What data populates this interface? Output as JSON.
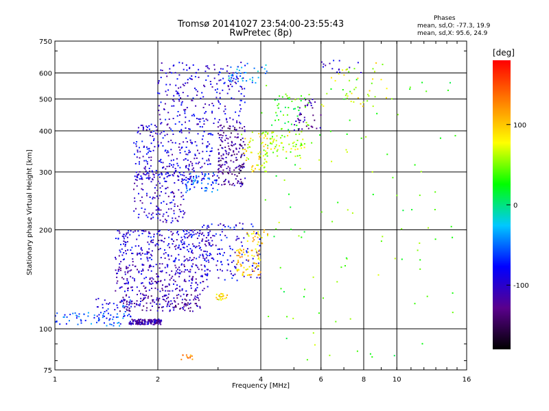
{
  "title_line1": "Tromsø 20141027 23:54:00-23:55:43",
  "title_line2": "RwPretec (8p)",
  "phases": {
    "heading": "Phases",
    "line_o": "mean, sd,O: -77.3, 19.9",
    "line_x": "mean, sd,X:  95.6, 24.9"
  },
  "chart_data": {
    "type": "scatter",
    "xlabel": "Frequency [MHz]",
    "ylabel": "Stationary phase Virtual Height [km]",
    "x_scale": "log",
    "y_scale": "log",
    "xlim": [
      1,
      16
    ],
    "ylim": [
      75,
      750
    ],
    "x_ticks": [
      1,
      2,
      4,
      6,
      8,
      10,
      16
    ],
    "y_ticks": [
      75,
      100,
      200,
      300,
      400,
      500,
      600,
      750
    ],
    "gridlines_x": [
      2,
      4,
      6,
      8,
      10
    ],
    "gridlines_y": [
      100,
      200,
      300,
      400,
      500,
      600
    ],
    "colorbar": {
      "unit": "[deg]",
      "range": [
        -180,
        180
      ],
      "ticks": [
        100,
        0,
        -100
      ],
      "colormap": [
        "#000000",
        "#5a008c",
        "#0000ff",
        "#00c8ff",
        "#00ff00",
        "#ffff00",
        "#ff8000",
        "#ff0000"
      ]
    },
    "point_groups": [
      {
        "x": [
          1.65,
          2.05
        ],
        "y": [
          103,
          107
        ],
        "phase": -115,
        "n": 150
      },
      {
        "x": [
          1.0,
          1.6
        ],
        "y": [
          102,
          112
        ],
        "phase": -60,
        "n": 60
      },
      {
        "x": [
          1.3,
          1.7
        ],
        "y": [
          108,
          125
        ],
        "phase": -75,
        "n": 40
      },
      {
        "x": [
          1.55,
          2.7
        ],
        "y": [
          113,
          128
        ],
        "phase": -115,
        "n": 160
      },
      {
        "x": [
          1.5,
          2.8
        ],
        "y": [
          130,
          158
        ],
        "phase": -105,
        "n": 220
      },
      {
        "x": [
          1.5,
          2.9
        ],
        "y": [
          160,
          200
        ],
        "phase": -95,
        "n": 260
      },
      {
        "x": [
          1.7,
          2.4
        ],
        "y": [
          210,
          300
        ],
        "phase": -100,
        "n": 150
      },
      {
        "x": [
          1.7,
          2.9
        ],
        "y": [
          280,
          420
        ],
        "phase": -95,
        "n": 280
      },
      {
        "x": [
          2.0,
          3.6
        ],
        "y": [
          420,
          650
        ],
        "phase": -95,
        "n": 220
      },
      {
        "x": [
          3.0,
          3.6
        ],
        "y": [
          270,
          420
        ],
        "phase": -125,
        "n": 180
      },
      {
        "x": [
          2.4,
          3.0
        ],
        "y": [
          260,
          300
        ],
        "phase": -60,
        "n": 60
      },
      {
        "x": [
          2.7,
          4.0
        ],
        "y": [
          140,
          210
        ],
        "phase": -90,
        "n": 140
      },
      {
        "x": [
          2.9,
          3.2
        ],
        "y": [
          122,
          128
        ],
        "phase": 90,
        "n": 20
      },
      {
        "x": [
          3.4,
          4.0
        ],
        "y": [
          145,
          175
        ],
        "phase": 100,
        "n": 70
      },
      {
        "x": [
          3.5,
          4.2
        ],
        "y": [
          300,
          400
        ],
        "phase": 80,
        "n": 60
      },
      {
        "x": [
          4.0,
          5.4
        ],
        "y": [
          330,
          400
        ],
        "phase": 60,
        "n": 70
      },
      {
        "x": [
          3.6,
          4.2
        ],
        "y": [
          180,
          200
        ],
        "phase": 95,
        "n": 25
      },
      {
        "x": [
          3.2,
          4.2
        ],
        "y": [
          560,
          650
        ],
        "phase": -40,
        "n": 40
      },
      {
        "x": [
          4.4,
          5.6
        ],
        "y": [
          400,
          520
        ],
        "phase": 30,
        "n": 40
      },
      {
        "x": [
          5.0,
          6.0
        ],
        "y": [
          400,
          500
        ],
        "phase": -115,
        "n": 40
      },
      {
        "x": [
          6.0,
          9.5
        ],
        "y": [
          470,
          650
        ],
        "phase": 70,
        "n": 40
      },
      {
        "x": [
          6.0,
          8.0
        ],
        "y": [
          600,
          660
        ],
        "phase": -100,
        "n": 15
      },
      {
        "x": [
          4.0,
          15.0
        ],
        "y": [
          80,
          600
        ],
        "phase": 40,
        "n": 120
      },
      {
        "x": [
          2.3,
          2.6
        ],
        "y": [
          80,
          84
        ],
        "phase": 130,
        "n": 12
      }
    ]
  }
}
